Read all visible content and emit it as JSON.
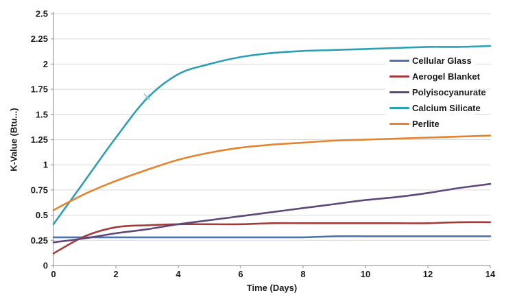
{
  "chart_data": {
    "type": "line",
    "title": "",
    "xlabel": "Time (Days)",
    "ylabel": "K-Value (Btu...)",
    "xlim": [
      0,
      14
    ],
    "ylim": [
      0,
      2.5
    ],
    "x_ticks": [
      0,
      2,
      4,
      6,
      8,
      10,
      12,
      14
    ],
    "x_tick_labels": [
      "0",
      "2",
      "4",
      "6",
      "8",
      "10",
      "12",
      "14"
    ],
    "y_ticks": [
      0,
      0.25,
      0.5,
      0.75,
      1,
      1.25,
      1.5,
      1.75,
      2,
      2.25,
      2.5
    ],
    "y_tick_labels": [
      "0",
      "0.25",
      "0.5",
      "0.75",
      "1",
      "1.25",
      "1.5",
      "1.75",
      "2",
      "2.25",
      "2.5"
    ],
    "grid": "horizontal",
    "legend_position": "overlay-upper-right",
    "line_style": "smooth",
    "x": [
      0,
      1,
      2,
      3,
      4,
      5,
      6,
      7,
      8,
      9,
      10,
      11,
      12,
      13,
      14
    ],
    "series": [
      {
        "name": "Cellular Glass",
        "color": "#4a72ad",
        "values": [
          0.28,
          0.28,
          0.28,
          0.28,
          0.28,
          0.28,
          0.28,
          0.28,
          0.28,
          0.29,
          0.29,
          0.29,
          0.29,
          0.29,
          0.29
        ]
      },
      {
        "name": "Aerogel Blanket",
        "color": "#a23c3a",
        "values": [
          0.12,
          0.29,
          0.38,
          0.4,
          0.41,
          0.41,
          0.41,
          0.42,
          0.42,
          0.42,
          0.42,
          0.42,
          0.42,
          0.43,
          0.43
        ]
      },
      {
        "name": "Polyisocyanurate",
        "color": "#5d4877",
        "values": [
          0.23,
          0.27,
          0.32,
          0.36,
          0.41,
          0.45,
          0.49,
          0.53,
          0.57,
          0.61,
          0.65,
          0.68,
          0.72,
          0.77,
          0.81
        ]
      },
      {
        "name": "Calcium Silicate",
        "color": "#2d9fb5",
        "values": [
          0.41,
          0.84,
          1.27,
          1.66,
          1.9,
          2.0,
          2.07,
          2.11,
          2.13,
          2.14,
          2.15,
          2.16,
          2.17,
          2.17,
          2.18
        ]
      },
      {
        "name": "Perlite",
        "color": "#e5822d",
        "values": [
          0.55,
          0.71,
          0.84,
          0.95,
          1.05,
          1.12,
          1.17,
          1.2,
          1.22,
          1.24,
          1.25,
          1.26,
          1.27,
          1.28,
          1.29
        ]
      }
    ],
    "annotations": [
      {
        "type": "x-marker",
        "series": "Calcium Silicate",
        "x": 3,
        "y": 1.66,
        "color": "#93cdda"
      }
    ]
  },
  "styles": {
    "background": "#ffffff",
    "grid_color": "#d9d9d9",
    "axis_color": "#9e9e9e",
    "tick_text_color": "#1a1a1a"
  }
}
